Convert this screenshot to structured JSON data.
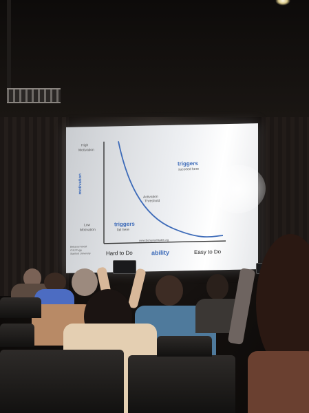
{
  "slide": {
    "y_top_label_line1": "High",
    "y_top_label_line2": "Motivation",
    "y_axis_label": "motivation",
    "y_bottom_label_line1": "Low",
    "y_bottom_label_line2": "Motivation",
    "x_left_label": "Hard to Do",
    "x_axis_label": "ability",
    "x_right_label": "Easy to Do",
    "trigger_upper": "triggers",
    "trigger_upper_sub": "succeed here",
    "trigger_lower": "triggers",
    "trigger_lower_sub": "fail here",
    "curve_label_line1": "Activation",
    "curve_label_line2": "Threshold",
    "source": "www.BehaviorModel.org",
    "credit_line1": "Behavior Model",
    "credit_line2": "© BJ Fogg",
    "credit_line3": "Stanford University"
  },
  "colors": {
    "accent_blue": "#3c6ab8",
    "screen": "#eef0f3"
  }
}
